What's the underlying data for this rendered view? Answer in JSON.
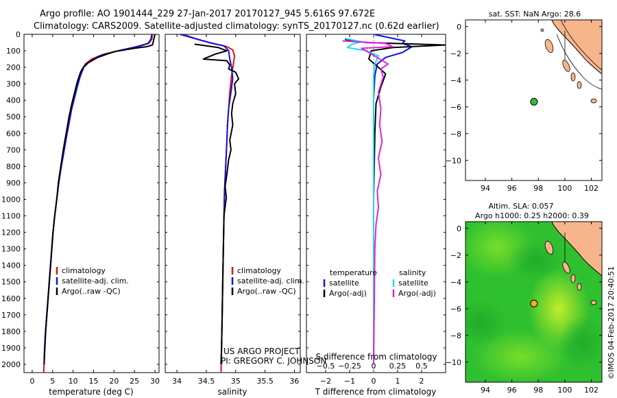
{
  "header": {
    "line1": "Argo profile: AO 1901444_229 27-Jan-2017 20170127_945 5.616S 97.672E",
    "line2": "Climatology: CARS2009. Satellite-adjusted climatology: synTS_20170127.nc (0.62d earlier)"
  },
  "colors": {
    "climatology": "#e01010",
    "satellite": "#1010e0",
    "argo": "#000000",
    "sal_satellite": "#20d8e8",
    "sal_argo": "#e020e0",
    "land": "#f7b58c",
    "sla_field": "#33cc33",
    "float_green": "#33bb33",
    "float_orange": "#f4b400"
  },
  "chart_data": [
    {
      "id": "temperature",
      "type": "line",
      "xlabel": "temperature (deg C)",
      "xlim": [
        -2,
        31
      ],
      "xticks": [
        0,
        5,
        10,
        15,
        20,
        25,
        30
      ],
      "ylim": [
        0,
        2050
      ],
      "yticks": [
        0,
        100,
        200,
        300,
        400,
        500,
        600,
        700,
        800,
        900,
        1000,
        1100,
        1200,
        1300,
        1400,
        1500,
        1600,
        1700,
        1800,
        1900,
        2000
      ],
      "legend": [
        "climatology",
        "satellite-adj. clim.",
        "Argo(..raw -QC)"
      ],
      "series": [
        {
          "name": "climatology",
          "color_key": "climatology",
          "points": [
            [
              29.4,
              0
            ],
            [
              29.2,
              30
            ],
            [
              28.5,
              55
            ],
            [
              26,
              75
            ],
            [
              22,
              95
            ],
            [
              17.5,
              120
            ],
            [
              14.5,
              150
            ],
            [
              13,
              180
            ],
            [
              12,
              220
            ],
            [
              11.3,
              280
            ],
            [
              10.5,
              350
            ],
            [
              9.8,
              420
            ],
            [
              9,
              500
            ],
            [
              8.4,
              600
            ],
            [
              7.8,
              700
            ],
            [
              7,
              800
            ],
            [
              6.5,
              900
            ],
            [
              6,
              1000
            ],
            [
              5.5,
              1100
            ],
            [
              5.1,
              1200
            ],
            [
              4.8,
              1300
            ],
            [
              4.5,
              1400
            ],
            [
              4.2,
              1500
            ],
            [
              3.9,
              1600
            ],
            [
              3.6,
              1700
            ],
            [
              3.3,
              1800
            ],
            [
              3.1,
              1900
            ],
            [
              2.9,
              2000
            ],
            [
              2.8,
              2050
            ]
          ]
        },
        {
          "name": "satellite-adj. clim.",
          "color_key": "satellite",
          "points": [
            [
              29.2,
              0
            ],
            [
              29,
              30
            ],
            [
              28.3,
              55
            ],
            [
              25.5,
              75
            ],
            [
              21,
              100
            ],
            [
              16.5,
              130
            ],
            [
              13.8,
              170
            ],
            [
              12.6,
              200
            ],
            [
              11.8,
              250
            ],
            [
              11,
              320
            ],
            [
              10.3,
              390
            ],
            [
              9.6,
              460
            ],
            [
              9,
              540
            ],
            [
              8.4,
              620
            ],
            [
              7.7,
              720
            ],
            [
              7,
              820
            ],
            [
              6.4,
              920
            ],
            [
              5.9,
              1020
            ],
            [
              5.4,
              1120
            ],
            [
              5,
              1220
            ],
            [
              4.7,
              1320
            ],
            [
              4.4,
              1420
            ],
            [
              4.1,
              1520
            ],
            [
              3.8,
              1620
            ],
            [
              3.5,
              1720
            ],
            [
              3.2,
              1820
            ],
            [
              3,
              1920
            ],
            [
              2.9,
              2000
            ]
          ]
        },
        {
          "name": "Argo(..raw -QC)",
          "color_key": "argo",
          "points": [
            [
              30,
              0
            ],
            [
              29.8,
              20
            ],
            [
              29.6,
              45
            ],
            [
              29.4,
              65
            ],
            [
              28,
              75
            ],
            [
              25,
              85
            ],
            [
              20,
              105
            ],
            [
              16,
              140
            ],
            [
              13.5,
              175
            ],
            [
              12.5,
              200
            ],
            [
              11.8,
              230
            ],
            [
              11,
              290
            ],
            [
              10.3,
              360
            ],
            [
              9.6,
              430
            ],
            [
              9,
              500
            ],
            [
              8.3,
              600
            ],
            [
              7.6,
              700
            ],
            [
              7,
              800
            ],
            [
              6.4,
              900
            ],
            [
              6,
              1000
            ],
            [
              5.5,
              1100
            ],
            [
              5.1,
              1200
            ],
            [
              4.8,
              1300
            ],
            [
              4.5,
              1400
            ],
            [
              4.2,
              1500
            ],
            [
              3.9,
              1600
            ],
            [
              3.6,
              1700
            ],
            [
              3.3,
              1800
            ],
            [
              3.1,
              1900
            ],
            [
              2.9,
              2000
            ]
          ]
        }
      ]
    },
    {
      "id": "salinity",
      "type": "line",
      "xlabel": "salinity",
      "xlim": [
        33.8,
        36.1
      ],
      "xticks": [
        34,
        34.5,
        35,
        35.5,
        36
      ],
      "ylim": [
        0,
        2050
      ],
      "legend": [
        "climatology",
        "satellite-adj. clim.",
        "Argo(..raw -QC)"
      ],
      "annotation": [
        "US ARGO PROJECT",
        "PI: GREGORY C. JOHNSON"
      ],
      "series": [
        {
          "name": "climatology",
          "color_key": "climatology",
          "points": [
            [
              34.1,
              0
            ],
            [
              34.35,
              30
            ],
            [
              34.6,
              55
            ],
            [
              34.85,
              75
            ],
            [
              34.95,
              95
            ],
            [
              34.98,
              130
            ],
            [
              34.96,
              180
            ],
            [
              34.93,
              250
            ],
            [
              34.9,
              350
            ],
            [
              34.88,
              450
            ],
            [
              34.86,
              550
            ],
            [
              34.85,
              650
            ],
            [
              34.83,
              800
            ],
            [
              34.81,
              950
            ],
            [
              34.8,
              1100
            ],
            [
              34.79,
              1300
            ],
            [
              34.78,
              1500
            ],
            [
              34.77,
              1700
            ],
            [
              34.76,
              1900
            ],
            [
              34.75,
              2050
            ]
          ]
        },
        {
          "name": "satellite-adj. clim.",
          "color_key": "satellite",
          "points": [
            [
              34.05,
              0
            ],
            [
              34.3,
              25
            ],
            [
              34.55,
              50
            ],
            [
              34.8,
              70
            ],
            [
              34.88,
              100
            ],
            [
              34.9,
              150
            ],
            [
              34.93,
              200
            ],
            [
              34.95,
              270
            ],
            [
              34.92,
              350
            ],
            [
              34.88,
              450
            ],
            [
              34.86,
              550
            ],
            [
              34.85,
              650
            ],
            [
              34.83,
              800
            ],
            [
              34.81,
              950
            ],
            [
              34.8,
              1100
            ],
            [
              34.79,
              1300
            ],
            [
              34.78,
              1500
            ],
            [
              34.77,
              1700
            ],
            [
              34.76,
              1900
            ],
            [
              34.75,
              2000
            ]
          ]
        },
        {
          "name": "Argo(..raw -QC)",
          "color_key": "argo",
          "points": [
            [
              34.3,
              60
            ],
            [
              34.5,
              70
            ],
            [
              34.7,
              80
            ],
            [
              34.85,
              100
            ],
            [
              34.65,
              120
            ],
            [
              34.45,
              150
            ],
            [
              34.85,
              160
            ],
            [
              34.9,
              185
            ],
            [
              34.88,
              210
            ],
            [
              35,
              230
            ],
            [
              35.05,
              270
            ],
            [
              34.98,
              300
            ],
            [
              35,
              360
            ],
            [
              34.95,
              420
            ],
            [
              34.93,
              480
            ],
            [
              34.95,
              550
            ],
            [
              34.9,
              640
            ],
            [
              34.92,
              700
            ],
            [
              34.88,
              760
            ],
            [
              34.85,
              850
            ],
            [
              34.82,
              920
            ],
            [
              34.84,
              990
            ],
            [
              34.8,
              1100
            ],
            [
              34.79,
              1300
            ],
            [
              34.78,
              1500
            ],
            [
              34.77,
              1700
            ],
            [
              34.76,
              1900
            ],
            [
              34.75,
              2000
            ]
          ]
        }
      ]
    },
    {
      "id": "difference",
      "type": "line",
      "xlabel": "T difference from climatology",
      "xlabel_top": "S difference from climatology",
      "xlim": [
        -2.8,
        3
      ],
      "xticks": [
        -2,
        -1,
        0,
        1,
        2
      ],
      "sticks": [
        -0.5,
        -0.25,
        0,
        0.25,
        0.5
      ],
      "sticklabels": [
        "−0.5",
        "−0.25",
        "0",
        "0.25",
        "0.5"
      ],
      "ylim": [
        0,
        2050
      ],
      "legend_left_title": "temperature",
      "legend_right_title": "salinity",
      "legend": [
        "satellite",
        "Argo(-adj)",
        "satellite",
        "Argo(-adj)"
      ],
      "series": [
        {
          "name": "T satellite",
          "color_key": "satellite",
          "points": [
            [
              0,
              0
            ],
            [
              0.8,
              25
            ],
            [
              1.3,
              40
            ],
            [
              1.2,
              55
            ],
            [
              1.6,
              75
            ],
            [
              1.2,
              110
            ],
            [
              0.5,
              140
            ],
            [
              0.15,
              180
            ],
            [
              0.05,
              250
            ],
            [
              0,
              400
            ],
            [
              0,
              2000
            ]
          ]
        },
        {
          "name": "T Argo(-adj)",
          "color_key": "argo",
          "points": [
            [
              -1.2,
              30
            ],
            [
              -0.3,
              50
            ],
            [
              3,
              65
            ],
            [
              0.8,
              80
            ],
            [
              -0.1,
              100
            ],
            [
              -0.2,
              150
            ],
            [
              0.2,
              200
            ],
            [
              0.5,
              240
            ],
            [
              0.3,
              320
            ],
            [
              0.1,
              420
            ],
            [
              0.05,
              600
            ],
            [
              0,
              1000
            ],
            [
              0,
              2000
            ]
          ]
        },
        {
          "name": "S satellite",
          "color_key": "sal_satellite",
          "points": [
            [
              -1.2,
              25
            ],
            [
              -0.5,
              45
            ],
            [
              -0.9,
              60
            ],
            [
              -1.1,
              80
            ],
            [
              -0.3,
              100
            ],
            [
              0.2,
              130
            ],
            [
              0.05,
              180
            ],
            [
              0,
              250
            ],
            [
              0,
              2000
            ]
          ]
        },
        {
          "name": "S Argo(-adj)",
          "color_key": "sal_argo",
          "points": [
            [
              -1.3,
              40
            ],
            [
              0.5,
              55
            ],
            [
              0.8,
              75
            ],
            [
              -0.5,
              85
            ],
            [
              -0.2,
              110
            ],
            [
              0.6,
              180
            ],
            [
              0.3,
              210
            ],
            [
              0.4,
              260
            ],
            [
              0.2,
              350
            ],
            [
              0.3,
              450
            ],
            [
              0.25,
              550
            ],
            [
              0.35,
              650
            ],
            [
              0.2,
              750
            ],
            [
              0.3,
              850
            ],
            [
              0.15,
              950
            ],
            [
              0.2,
              1050
            ],
            [
              0.1,
              1150
            ],
            [
              0.05,
              1300
            ],
            [
              0,
              2000
            ]
          ]
        }
      ]
    },
    {
      "id": "sst_map",
      "type": "scatter",
      "title": "sat. SST: NaN Argo: 28.6",
      "xlim": [
        92.5,
        102.8
      ],
      "ylim": [
        -11.5,
        0.5
      ],
      "xticks": [
        94,
        96,
        98,
        100,
        102
      ],
      "yticks": [
        0,
        -2,
        -4,
        -6,
        -8,
        -10
      ],
      "float": {
        "lon": 97.672,
        "lat": -5.616
      }
    },
    {
      "id": "sla_map",
      "type": "heatmap",
      "title": "Altim. SLA: 0.057",
      "subtitle": "Argo h1000: 0.25 h2000: 0.39",
      "xlim": [
        92.5,
        102.8
      ],
      "ylim": [
        -11.5,
        0.5
      ],
      "xticks": [
        94,
        96,
        98,
        100,
        102
      ],
      "yticks": [
        0,
        -2,
        -4,
        -6,
        -8,
        -10
      ],
      "float": {
        "lon": 97.672,
        "lat": -5.616
      }
    }
  ],
  "footer": {
    "imos": "©IMOS 04-Feb-2017 20:40:51"
  }
}
